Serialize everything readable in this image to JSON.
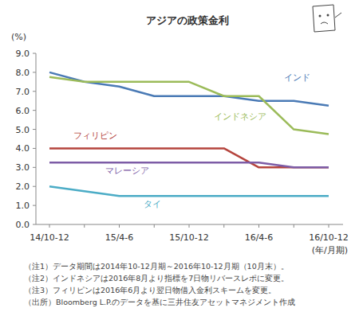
{
  "chart_data": {
    "type": "line",
    "title": "アジアの政策金利",
    "y_label": "(%)",
    "x_label": "(年/月期)",
    "categories": [
      "14/10-12",
      null,
      "15/4-6",
      null,
      "15/10-12",
      null,
      "16/4-6",
      null,
      "16/10-12"
    ],
    "series": [
      {
        "name": "インド",
        "color": "#4a7ab5",
        "values": [
          8.0,
          7.5,
          7.25,
          6.75,
          6.75,
          6.75,
          6.5,
          6.5,
          6.25
        ]
      },
      {
        "name": "インドネシア",
        "color": "#9bbb59",
        "values": [
          7.75,
          7.5,
          7.5,
          7.5,
          7.5,
          6.75,
          6.75,
          5.0,
          4.75
        ]
      },
      {
        "name": "フィリピン",
        "color": "#b5443d",
        "values": [
          4.0,
          4.0,
          4.0,
          4.0,
          4.0,
          4.0,
          3.0,
          3.0,
          3.0
        ]
      },
      {
        "name": "マレーシア",
        "color": "#7d5ca6",
        "values": [
          3.25,
          3.25,
          3.25,
          3.25,
          3.25,
          3.25,
          3.25,
          3.0,
          3.0
        ]
      },
      {
        "name": "タイ",
        "color": "#4bacc6",
        "values": [
          2.0,
          1.75,
          1.5,
          1.5,
          1.5,
          1.5,
          1.5,
          1.5,
          1.5
        ]
      }
    ],
    "ylim": [
      0,
      9
    ],
    "yticks": [
      {
        "value": 0,
        "label": "0.0"
      },
      {
        "value": 1,
        "label": "1.0"
      },
      {
        "value": 2,
        "label": "2.0"
      },
      {
        "value": 3,
        "label": "3.0"
      },
      {
        "value": 4,
        "label": "4.0"
      },
      {
        "value": 5,
        "label": "5.0"
      },
      {
        "value": 6,
        "label": "6.0"
      },
      {
        "value": 7,
        "label": "7.0"
      },
      {
        "value": 8,
        "label": "8.0"
      },
      {
        "value": 9,
        "label": "9.0"
      }
    ],
    "grid": false,
    "notes": [
      "（注1）データ期間は2014年10-12月期～2016年10-12月期（10月末）。",
      "（注2）インドネシアは2016年8月より指標を7日物リバースレポに変更。",
      "（注3）フィリピンは2016年6月より翌日物借入金利スキームを変更。",
      "（出所）Bloomberg L.P.のデータを基に三井住友アセットマネジメント作成"
    ]
  }
}
